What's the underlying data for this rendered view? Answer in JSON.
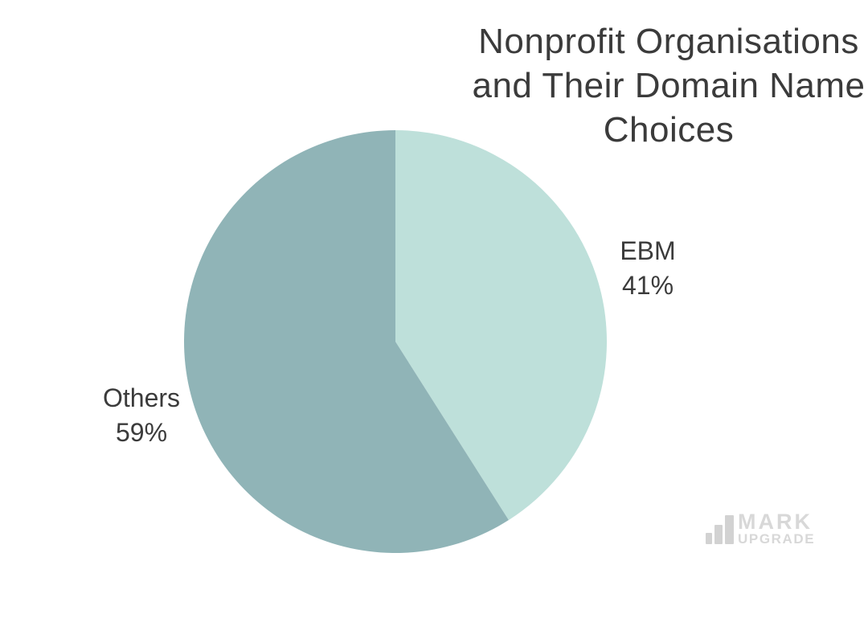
{
  "chart_data": {
    "type": "pie",
    "title": "Nonprofit Organisations and Their Domain Name Choices",
    "title_lines": [
      "Nonprofit Organisations",
      "and Their Domain Name",
      "Choices"
    ],
    "slices": [
      {
        "label": "EBM",
        "value": 41,
        "display_value": "41%",
        "color": "#bee0da"
      },
      {
        "label": "Others",
        "value": 59,
        "display_value": "59%",
        "color": "#90b4b7"
      }
    ],
    "start_angle_deg": 0,
    "direction": "clockwise",
    "legend_position": "none",
    "background": "#ffffff",
    "title_color": "#3b3b3b",
    "label_color": "#3b3b3b"
  },
  "watermark": {
    "line1": "MARK",
    "line2": "UPGRADE",
    "icon": "bar-chart-icon",
    "color": "#d8d8d8"
  }
}
